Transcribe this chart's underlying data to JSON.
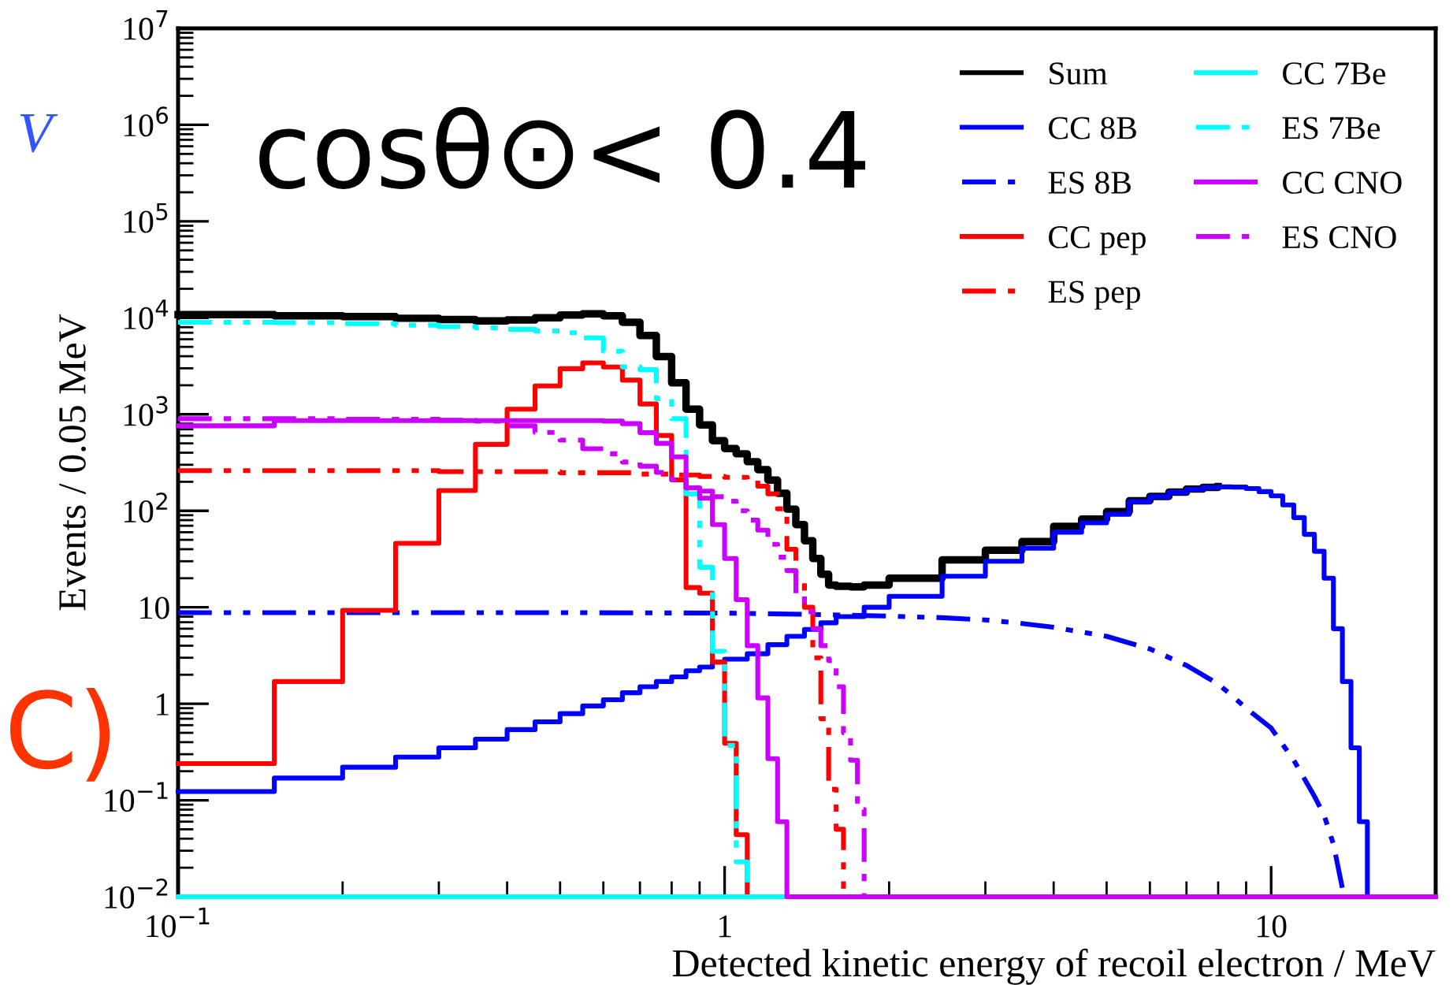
{
  "chart_data": {
    "type": "step",
    "xlabel": "Detected kinetic energy of recoil electron / MeV",
    "ylabel": "Events / 0.05 MeV",
    "log": "xy",
    "xlim": [
      0.1,
      20
    ],
    "ylim": [
      0.01,
      10000000
    ],
    "xticks": [
      {
        "value": 0.1,
        "label": "10$^{−1}$"
      },
      1,
      10
    ],
    "yticks": [
      {
        "value": 0.01,
        "label": "10$^{−2}$"
      },
      {
        "value": 0.1,
        "label": "10$^{−1}$"
      },
      1,
      10,
      {
        "value": 100,
        "label": "10$^{2}$"
      },
      {
        "value": 1000,
        "label": "10$^{3}$"
      },
      {
        "value": 10000,
        "label": "10$^{4}$"
      },
      {
        "value": 100000,
        "label": "10$^{5}$"
      },
      {
        "value": 1000000,
        "label": "10$^{6}$"
      },
      {
        "value": 10000000,
        "label": "10$^{7}$"
      }
    ],
    "grid": false,
    "legend": "top right",
    "annotations": [
      "cosθ⊙< 0.4",
      "V",
      "C)"
    ],
    "series": [
      {
        "name": "Sum",
        "color": "#000000",
        "line_style": "solid",
        "x": [
          0.1,
          0.15,
          0.2,
          0.25,
          0.3,
          0.35,
          0.4,
          0.45,
          0.5,
          0.55,
          0.6,
          0.65,
          0.7,
          0.75,
          0.8,
          0.85,
          0.9,
          0.95,
          1.0,
          1.05,
          1.1,
          1.15,
          1.2,
          1.25,
          1.3,
          1.35,
          1.4,
          1.45,
          1.5,
          1.55,
          1.6,
          1.7,
          1.8,
          2.0,
          2.5,
          3.0,
          3.5,
          4.0,
          4.5,
          5.0,
          5.5,
          6.0,
          6.5,
          7.0,
          7.5,
          8.0
        ],
        "values": [
          10800,
          10500,
          10300,
          9900,
          9600,
          9300,
          9500,
          10000,
          10700,
          11000,
          10500,
          9000,
          6550,
          3970,
          2120,
          1130,
          777,
          533,
          442,
          390,
          323,
          267,
          208,
          152,
          104,
          72,
          49,
          32,
          22,
          17,
          16.5,
          16.3,
          17,
          20,
          31,
          39,
          48,
          69,
          82,
          98,
          127,
          141,
          156,
          168,
          175,
          178
        ]
      },
      {
        "name": "CC 8B",
        "color": "#0000ff",
        "line_style": "solid",
        "x": [
          0.1,
          0.15,
          0.2,
          0.25,
          0.3,
          0.35,
          0.4,
          0.45,
          0.5,
          0.55,
          0.6,
          0.65,
          0.7,
          0.75,
          0.8,
          0.85,
          0.9,
          0.95,
          1.0,
          1.1,
          1.2,
          1.3,
          1.4,
          1.5,
          1.6,
          1.8,
          2.0,
          2.5,
          3.0,
          3.5,
          4.0,
          4.5,
          5.0,
          5.5,
          6.0,
          6.5,
          7.0,
          7.5,
          8.0,
          8.5,
          9.0,
          9.5,
          10.0,
          10.5,
          11.0,
          11.5,
          12.0,
          12.5,
          13.0,
          13.5,
          14.0,
          14.5,
          15.0
        ],
        "values": [
          0.123,
          0.17,
          0.22,
          0.28,
          0.35,
          0.43,
          0.54,
          0.65,
          0.79,
          0.95,
          1.1,
          1.3,
          1.5,
          1.7,
          1.9,
          2.2,
          2.4,
          2.7,
          2.9,
          3.3,
          4.1,
          5.0,
          5.9,
          6.9,
          8,
          10,
          13,
          21,
          30,
          41,
          60,
          75,
          92,
          125,
          140,
          155,
          167,
          175,
          177,
          176,
          170,
          158,
          143,
          115,
          85,
          57,
          38,
          20,
          6,
          1.7,
          0.35,
          0.06,
          0.01
        ]
      },
      {
        "name": "ES 8B",
        "color": "#0000ff",
        "type": "line",
        "line_style": "dashed",
        "x": [
          0.1,
          0.2,
          0.5,
          1.0,
          1.5,
          2.0,
          2.5,
          3.0,
          3.5,
          4.0,
          5.0,
          6.0,
          7.0,
          8.0,
          8.5,
          9.0,
          10.0,
          11.0,
          12.0,
          12.5,
          13.0,
          13.6
        ],
        "values": [
          8.8,
          8.8,
          8.8,
          8.7,
          8.4,
          8.1,
          7.8,
          7.4,
          6.8,
          6.2,
          5.0,
          3.7,
          2.5,
          1.6,
          1.2,
          0.9,
          0.56,
          0.26,
          0.11,
          0.07,
          0.035,
          0.01
        ]
      },
      {
        "name": "CC pep",
        "color": "#ff0000",
        "line_style": "solid",
        "x": [
          0.1,
          0.15,
          0.2,
          0.25,
          0.3,
          0.35,
          0.4,
          0.45,
          0.5,
          0.55,
          0.6,
          0.65,
          0.7,
          0.75,
          0.8,
          0.85,
          0.9,
          0.95,
          1.0,
          1.05,
          1.1
        ],
        "values": [
          0.24,
          1.7,
          9.3,
          46,
          162,
          489,
          1130,
          1970,
          2970,
          3410,
          3090,
          2260,
          1280,
          604,
          209,
          16,
          14,
          2.7,
          0.39,
          0.044,
          0.01
        ]
      },
      {
        "name": "ES pep",
        "color": "#ff0000",
        "line_style": "dashed",
        "x": [
          0.1,
          0.3,
          0.5,
          0.7,
          0.8,
          0.9,
          1.0,
          1.1,
          1.15,
          1.2,
          1.25,
          1.3,
          1.35,
          1.4,
          1.45,
          1.5,
          1.55,
          1.6,
          1.65
        ],
        "values": [
          261,
          255,
          248,
          240,
          235,
          227,
          222,
          210,
          180,
          150,
          105,
          40,
          20,
          10,
          3,
          0.7,
          0.13,
          0.05,
          0.01
        ]
      },
      {
        "name": "CC 7Be",
        "color": "#00ffff",
        "line_style": "solid",
        "x": [
          0.1,
          1.3
        ],
        "values": [
          0.01,
          0.01
        ]
      },
      {
        "name": "ES 7Be",
        "color": "#00ffff",
        "line_style": "dashed",
        "x": [
          0.1,
          0.15,
          0.2,
          0.25,
          0.3,
          0.35,
          0.4,
          0.45,
          0.5,
          0.55,
          0.6,
          0.65,
          0.7,
          0.75,
          0.8,
          0.85,
          0.9,
          0.95,
          1.0,
          1.05,
          1.1
        ],
        "values": [
          8980,
          8900,
          8700,
          8400,
          8100,
          7900,
          7600,
          7300,
          7000,
          6200,
          4500,
          3100,
          2900,
          1450,
          900,
          150,
          26,
          3.5,
          0.37,
          0.023,
          0.01
        ]
      },
      {
        "name": "CC CNO",
        "color": "#cc00ff",
        "line_style": "solid",
        "x": [
          0.1,
          0.15,
          0.2,
          0.3,
          0.4,
          0.5,
          0.6,
          0.65,
          0.7,
          0.75,
          0.8,
          0.85,
          0.9,
          0.95,
          1.0,
          1.05,
          1.1,
          1.15,
          1.2,
          1.25,
          1.3,
          20
        ],
        "values": [
          760,
          860,
          860,
          860,
          860,
          860,
          850,
          800,
          645,
          500,
          362,
          173,
          135,
          72,
          32,
          12,
          4,
          1.15,
          0.27,
          0.06,
          0.01,
          0.01
        ]
      },
      {
        "name": "ES CNO",
        "color": "#cc00ff",
        "line_style": "dashed",
        "x": [
          0.1,
          0.2,
          0.3,
          0.35,
          0.4,
          0.45,
          0.5,
          0.55,
          0.6,
          0.65,
          0.7,
          0.75,
          0.8,
          0.85,
          0.9,
          0.95,
          1.0,
          1.05,
          1.1,
          1.15,
          1.2,
          1.25,
          1.3,
          1.35,
          1.4,
          1.45,
          1.5,
          1.55,
          1.6,
          1.65,
          1.7,
          1.75,
          1.8
        ],
        "values": [
          900,
          890,
          870,
          850,
          760,
          650,
          540,
          440,
          390,
          320,
          290,
          250,
          210,
          180,
          160,
          140,
          126,
          100,
          80,
          63,
          45,
          33,
          24,
          14,
          9,
          6,
          4,
          2.8,
          1.5,
          0.5,
          0.26,
          0.08,
          0.01
        ]
      }
    ]
  }
}
